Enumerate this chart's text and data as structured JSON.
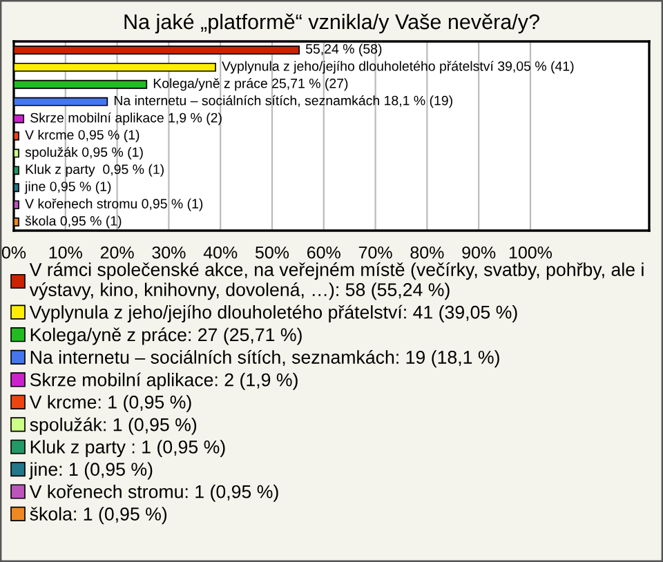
{
  "chart_data": {
    "type": "bar",
    "orientation": "horizontal",
    "title": "Na jaké „platformě“ vznikla/y Vaše nevěra/y?",
    "categories": [
      null,
      null,
      null,
      null,
      null,
      null,
      null,
      null,
      null,
      null,
      null
    ],
    "series": [
      {
        "name": "V rámci společenské akce, na veřejném místě (večírky, svatby, pohřby, ale i výstavy, kino, knihovny, dovolená, …): 58 (55,24 %)",
        "color": "#cc2200",
        "values": [
          55.24,
          null,
          null,
          null,
          null,
          null,
          null,
          null,
          null,
          null,
          null
        ],
        "value_labels": [
          "55,24 % (58)",
          null,
          null,
          null,
          null,
          null,
          null,
          null,
          null,
          null,
          null
        ]
      },
      {
        "name": "Vyplynula z jeho/jejího dlouholetého přátelství: 41 (39,05 %)",
        "color": "#ffee00",
        "values": [
          null,
          39.05,
          null,
          null,
          null,
          null,
          null,
          null,
          null,
          null,
          null
        ],
        "value_labels": [
          null,
          "Vyplynula z jeho/jejího dlouholetého přátelství 39,05 % (41)",
          null,
          null,
          null,
          null,
          null,
          null,
          null,
          null,
          null
        ]
      },
      {
        "name": "Kolega/yně z práce: 27 (25,71 %)",
        "color": "#22bb22",
        "values": [
          null,
          null,
          25.71,
          null,
          null,
          null,
          null,
          null,
          null,
          null,
          null
        ],
        "value_labels": [
          null,
          null,
          "Kolega/yně z práce 25,71 % (27)",
          null,
          null,
          null,
          null,
          null,
          null,
          null,
          null
        ]
      },
      {
        "name": "Na internetu – sociálních sítích, seznamkách: 19 (18,1 %)",
        "color": "#4477ee",
        "values": [
          null,
          null,
          null,
          18.1,
          null,
          null,
          null,
          null,
          null,
          null,
          null
        ],
        "value_labels": [
          null,
          null,
          null,
          "Na internetu – sociálních sítích, seznamkách 18,1 % (19)",
          null,
          null,
          null,
          null,
          null,
          null,
          null
        ]
      },
      {
        "name": "Skrze mobilní aplikace: 2 (1,9 %)",
        "color": "#cc22cc",
        "values": [
          null,
          null,
          null,
          null,
          1.9,
          null,
          null,
          null,
          null,
          null,
          null
        ],
        "value_labels": [
          null,
          null,
          null,
          null,
          "Skrze mobilní aplikace 1,9 % (2)",
          null,
          null,
          null,
          null,
          null,
          null
        ]
      },
      {
        "name": "V krcme: 1 (0,95 %)",
        "color": "#ee4411",
        "values": [
          null,
          null,
          null,
          null,
          null,
          0.95,
          null,
          null,
          null,
          null,
          null
        ],
        "value_labels": [
          null,
          null,
          null,
          null,
          null,
          "V krcme 0,95 % (1)",
          null,
          null,
          null,
          null,
          null
        ]
      },
      {
        "name": "spolužák: 1 (0,95 %)",
        "color": "#ccff88",
        "values": [
          null,
          null,
          null,
          null,
          null,
          null,
          0.95,
          null,
          null,
          null,
          null
        ],
        "value_labels": [
          null,
          null,
          null,
          null,
          null,
          null,
          "spolužák 0,95 % (1)",
          null,
          null,
          null,
          null
        ]
      },
      {
        "name": "Kluk z party : 1 (0,95 %)",
        "color": "#229966",
        "values": [
          null,
          null,
          null,
          null,
          null,
          null,
          null,
          0.95,
          null,
          null,
          null
        ],
        "value_labels": [
          null,
          null,
          null,
          null,
          null,
          null,
          null,
          "Kluk z party  0,95 % (1)",
          null,
          null,
          null
        ]
      },
      {
        "name": "jine: 1 (0,95 %)",
        "color": "#227788",
        "values": [
          null,
          null,
          null,
          null,
          null,
          null,
          null,
          null,
          0.95,
          null,
          null
        ],
        "value_labels": [
          null,
          null,
          null,
          null,
          null,
          null,
          null,
          null,
          "jine 0,95 % (1)",
          null,
          null
        ]
      },
      {
        "name": "V kořenech stromu: 1 (0,95 %)",
        "color": "#bb55bb",
        "values": [
          null,
          null,
          null,
          null,
          null,
          null,
          null,
          null,
          null,
          0.95,
          null
        ],
        "value_labels": [
          null,
          null,
          null,
          null,
          null,
          null,
          null,
          null,
          null,
          "V kořenech stromu 0,95 % (1)",
          null
        ]
      },
      {
        "name": "škola: 1 (0,95 %)",
        "color": "#ee8822",
        "values": [
          null,
          null,
          null,
          null,
          null,
          null,
          null,
          null,
          null,
          null,
          0.95
        ],
        "value_labels": [
          null,
          null,
          null,
          null,
          null,
          null,
          null,
          null,
          null,
          null,
          "škola 0,95 % (1)"
        ]
      }
    ],
    "xlim": [
      0,
      123
    ],
    "xticks": [
      {
        "value": 0,
        "label": "0%"
      },
      {
        "value": 10,
        "label": "10%"
      },
      {
        "value": 20,
        "label": "20%"
      },
      {
        "value": 30,
        "label": "30%"
      },
      {
        "value": 40,
        "label": "40%"
      },
      {
        "value": 50,
        "label": "50%"
      },
      {
        "value": 60,
        "label": "60%"
      },
      {
        "value": 70,
        "label": "70%"
      },
      {
        "value": 80,
        "label": "80%"
      },
      {
        "value": 90,
        "label": "90%"
      },
      {
        "value": 100,
        "label": "100%"
      }
    ],
    "grid": "x",
    "legend": "bottom",
    "tick_labels": "x"
  }
}
